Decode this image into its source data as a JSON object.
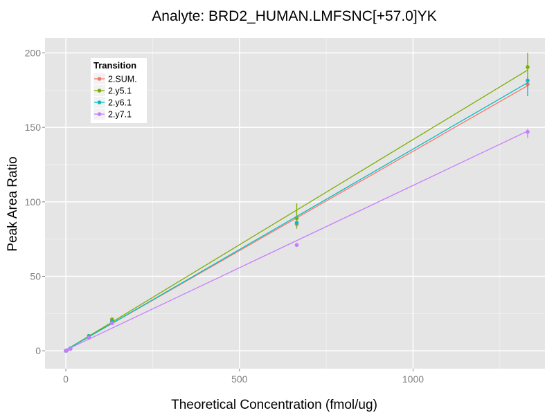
{
  "chart_data": {
    "type": "scatter",
    "title": "Analyte: BRD2_HUMAN.LMFSNC[+57.0]YK",
    "xlabel": "Theoretical Concentration (fmol/ug)",
    "ylabel": "Peak Area Ratio",
    "xlim": [
      -60,
      1380
    ],
    "ylim": [
      -12,
      210
    ],
    "x_ticks": [
      0,
      500,
      1000
    ],
    "y_ticks": [
      0,
      50,
      100,
      150,
      200
    ],
    "grid": true,
    "legend": {
      "title": "Transition",
      "position": "top-left"
    },
    "series": [
      {
        "name": "2.SUM.",
        "color": "#F8766D",
        "points": [
          [
            0,
            0.0
          ],
          [
            2.7,
            0.3
          ],
          [
            13.3,
            1.5
          ],
          [
            66.5,
            9.5
          ],
          [
            133,
            19.8
          ],
          [
            665,
            85.0
          ],
          [
            1330,
            179.0
          ]
        ],
        "fit": [
          [
            0,
            0.5
          ],
          [
            1330,
            178.0
          ]
        ],
        "error_bars": []
      },
      {
        "name": "2.y5.1",
        "color": "#7CAE00",
        "points": [
          [
            0,
            0.0
          ],
          [
            2.7,
            0.3
          ],
          [
            13.3,
            1.6
          ],
          [
            66.5,
            10.0
          ],
          [
            133,
            21.0
          ],
          [
            665,
            89.0
          ],
          [
            1330,
            190.5
          ]
        ],
        "fit": [
          [
            0,
            0.5
          ],
          [
            1330,
            188.5
          ]
        ],
        "error_bars": [
          [
            133,
            19.5,
            22.5
          ],
          [
            665,
            82.0,
            99.0
          ],
          [
            1330,
            181.0,
            200.0
          ]
        ]
      },
      {
        "name": "2.y6.1",
        "color": "#00BFC4",
        "points": [
          [
            0,
            0.0
          ],
          [
            2.7,
            0.3
          ],
          [
            13.3,
            1.5
          ],
          [
            66.5,
            9.8
          ],
          [
            133,
            19.5
          ],
          [
            665,
            86.0
          ],
          [
            1330,
            181.5
          ]
        ],
        "fit": [
          [
            0,
            0.5
          ],
          [
            1330,
            180.0
          ]
        ],
        "error_bars": [
          [
            1330,
            171.0,
            184.0
          ]
        ]
      },
      {
        "name": "2.y7.1",
        "color": "#C77CFF",
        "points": [
          [
            0,
            0.0
          ],
          [
            2.7,
            0.2
          ],
          [
            13.3,
            1.2
          ],
          [
            66.5,
            8.8
          ],
          [
            133,
            18.5
          ],
          [
            665,
            71.0
          ],
          [
            1330,
            147.0
          ]
        ],
        "fit": [
          [
            0,
            0.5
          ],
          [
            1330,
            147.5
          ]
        ],
        "error_bars": [
          [
            1330,
            143.0,
            149.0
          ]
        ]
      }
    ]
  }
}
